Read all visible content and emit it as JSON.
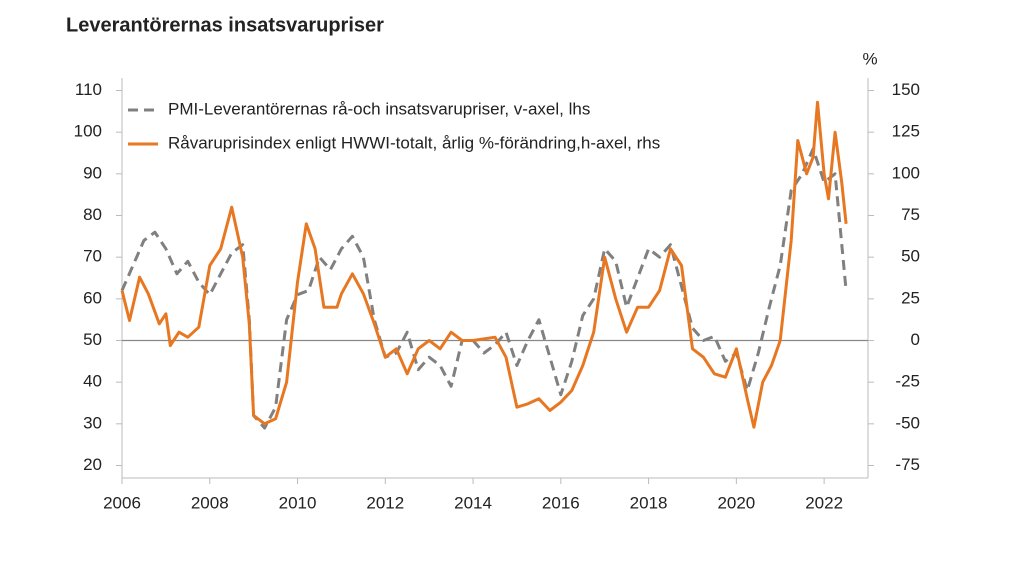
{
  "chart_data": {
    "type": "line",
    "title": "Leverantörernas insatsvarupriser",
    "y2label": "%",
    "xlim": [
      2006,
      2023
    ],
    "xticks": [
      2006,
      2008,
      2010,
      2012,
      2014,
      2016,
      2018,
      2020,
      2022
    ],
    "ylim": [
      17,
      113
    ],
    "yticks": [
      20,
      30,
      40,
      50,
      60,
      70,
      80,
      90,
      100,
      110
    ],
    "y2lim": [
      -82.5,
      157.5
    ],
    "y2ticks": [
      -75,
      -50,
      -25,
      0,
      25,
      50,
      75,
      100,
      125,
      150
    ],
    "reference_line": 50,
    "legend": "upper left",
    "series": [
      {
        "name": "PMI-Leverantörernas rå-och insatsvarupriser, v-axel, lhs",
        "color": "#808080",
        "dashed": true,
        "axis": "y",
        "x": [
          2006.0,
          2006.25,
          2006.5,
          2006.75,
          2007.0,
          2007.25,
          2007.5,
          2007.75,
          2008.0,
          2008.25,
          2008.5,
          2008.75,
          2008.9,
          2009.0,
          2009.25,
          2009.5,
          2009.75,
          2010.0,
          2010.25,
          2010.5,
          2010.75,
          2011.0,
          2011.25,
          2011.5,
          2011.75,
          2012.0,
          2012.25,
          2012.5,
          2012.75,
          2013.0,
          2013.25,
          2013.5,
          2013.75,
          2014.0,
          2014.25,
          2014.5,
          2014.75,
          2015.0,
          2015.25,
          2015.5,
          2015.75,
          2016.0,
          2016.25,
          2016.5,
          2016.75,
          2017.0,
          2017.25,
          2017.5,
          2017.75,
          2018.0,
          2018.25,
          2018.5,
          2018.75,
          2019.0,
          2019.25,
          2019.5,
          2019.75,
          2020.0,
          2020.25,
          2020.5,
          2020.75,
          2021.0,
          2021.25,
          2021.5,
          2021.75,
          2022.0,
          2022.25,
          2022.5
        ],
        "values": [
          62,
          68,
          74,
          76,
          72,
          66,
          69,
          64,
          61,
          66,
          71,
          73,
          55,
          32,
          29,
          34,
          55,
          61,
          62,
          70,
          67,
          72,
          75,
          70,
          55,
          46,
          47,
          52,
          43,
          46,
          44,
          39,
          50,
          50,
          47,
          49,
          52,
          44,
          50,
          55,
          46,
          37,
          45,
          56,
          60,
          72,
          69,
          58,
          65,
          72,
          70,
          73,
          63,
          53,
          50,
          51,
          45,
          47,
          38,
          47,
          58,
          68,
          86,
          90,
          96,
          88,
          90,
          62
        ]
      },
      {
        "name": "Råvaruprisindex enligt HWWI-totalt, årlig %-förändring,h-axel, rhs",
        "color": "#e87722",
        "dashed": false,
        "axis": "y2",
        "x": [
          2006.0,
          2006.17,
          2006.4,
          2006.6,
          2006.85,
          2007.0,
          2007.1,
          2007.3,
          2007.5,
          2007.75,
          2008.0,
          2008.25,
          2008.5,
          2008.75,
          2008.9,
          2009.0,
          2009.25,
          2009.5,
          2009.75,
          2010.0,
          2010.2,
          2010.4,
          2010.6,
          2010.9,
          2011.0,
          2011.25,
          2011.5,
          2011.75,
          2012.0,
          2012.25,
          2012.5,
          2012.75,
          2013.0,
          2013.25,
          2013.5,
          2013.75,
          2014.0,
          2014.5,
          2014.75,
          2015.0,
          2015.25,
          2015.5,
          2015.75,
          2016.0,
          2016.25,
          2016.5,
          2016.75,
          2017.0,
          2017.25,
          2017.5,
          2017.75,
          2018.0,
          2018.25,
          2018.5,
          2018.75,
          2019.0,
          2019.25,
          2019.5,
          2019.75,
          2020.0,
          2020.25,
          2020.4,
          2020.6,
          2020.8,
          2021.0,
          2021.25,
          2021.4,
          2021.6,
          2021.75,
          2021.85,
          2022.0,
          2022.1,
          2022.25,
          2022.4,
          2022.5
        ],
        "values": [
          30,
          12,
          38,
          28,
          10,
          16,
          -3,
          5,
          2,
          8,
          45,
          55,
          80,
          50,
          10,
          -45,
          -50,
          -47,
          -25,
          35,
          70,
          55,
          20,
          20,
          28,
          40,
          28,
          10,
          -10,
          -5,
          -20,
          -5,
          0,
          -5,
          5,
          0,
          0,
          2,
          -10,
          -40,
          -38,
          -35,
          -42,
          -37,
          -30,
          -15,
          5,
          50,
          25,
          5,
          20,
          20,
          30,
          55,
          45,
          -5,
          -10,
          -20,
          -22,
          -5,
          -35,
          -52,
          -25,
          -15,
          0,
          60,
          120,
          100,
          110,
          143,
          100,
          85,
          125,
          95,
          70
        ]
      }
    ]
  }
}
